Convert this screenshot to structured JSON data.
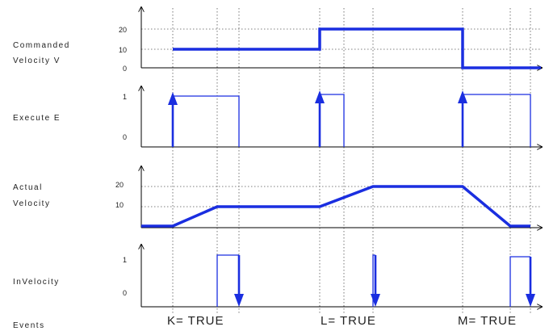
{
  "labels": {
    "commanded_line1": "Commanded",
    "commanded_line2": "Velocity V",
    "execute": "Execute E",
    "actual_line1": "Actual",
    "actual_line2": "Velocity",
    "invelocity": "InVelocity",
    "events": "Events"
  },
  "ticks": {
    "cv_20": "20",
    "cv_10": "10",
    "cv_0": "0",
    "ex_1": "1",
    "ex_0": "0",
    "av_20": "20",
    "av_10": "10",
    "iv_1": "1",
    "iv_0": "0"
  },
  "events": {
    "k": "K= TRUE",
    "l": "L= TRUE",
    "m": "M= TRUE"
  },
  "colors": {
    "signal": "#1a2ee0",
    "axis": "#000000",
    "grid": "#555555"
  }
}
